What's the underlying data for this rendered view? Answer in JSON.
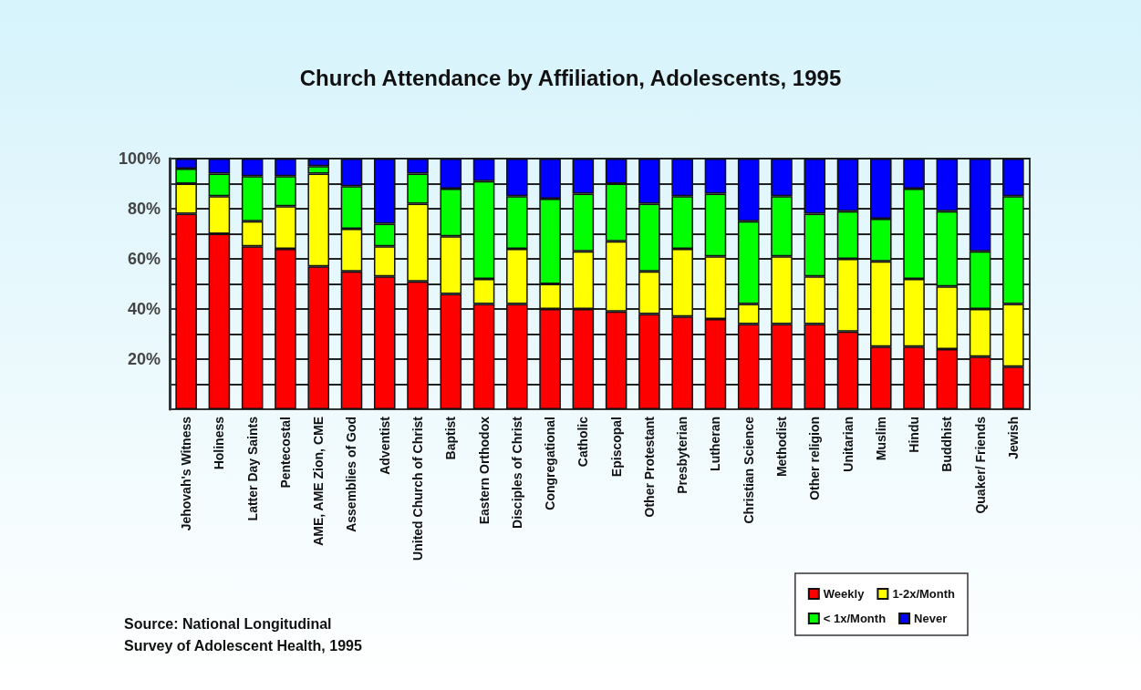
{
  "chart_data": {
    "type": "bar",
    "title": "Church Attendance by Affiliation, Adolescents, 1995",
    "stacked": true,
    "categories": [
      "Jehovah's Witness",
      "Holiness",
      "Latter Day Saints",
      "Pentecostal",
      "AME, AME Zion, CME",
      "Assemblies of God",
      "Adventist",
      "United Church of Christ",
      "Baptist",
      "Eastern Orthodox",
      "Disciples of Christ",
      "Congregational",
      "Catholic",
      "Episcopal",
      "Other Protestant",
      "Presbyterian",
      "Lutheran",
      "Christian Science",
      "Methodist",
      "Other religion",
      "Unitarian",
      "Muslim",
      "Hindu",
      "Buddhist",
      "Quaker/ Friends",
      "Jewish"
    ],
    "series": [
      {
        "name": "Weekly",
        "color": "#ff0000",
        "values": [
          78,
          70,
          65,
          64,
          57,
          55,
          53,
          51,
          46,
          42,
          42,
          40,
          40,
          39,
          38,
          37,
          36,
          34,
          34,
          34,
          31,
          25,
          25,
          24,
          21,
          17
        ]
      },
      {
        "name": "1-2x/Month",
        "color": "#ffff00",
        "values": [
          12,
          15,
          10,
          17,
          37,
          17,
          12,
          31,
          23,
          10,
          22,
          10,
          23,
          28,
          17,
          27,
          25,
          8,
          27,
          19,
          29,
          34,
          27,
          25,
          19,
          25
        ]
      },
      {
        "name": "< 1x/Month",
        "color": "#00ff00",
        "values": [
          6,
          9,
          18,
          12,
          3,
          17,
          9,
          12,
          19,
          39,
          21,
          34,
          23,
          23,
          27,
          21,
          25,
          33,
          24,
          25,
          19,
          17,
          36,
          30,
          23,
          43
        ]
      },
      {
        "name": "Never",
        "color": "#0000ff",
        "values": [
          4,
          6,
          7,
          7,
          3,
          11,
          26,
          6,
          12,
          9,
          15,
          16,
          14,
          10,
          18,
          15,
          14,
          25,
          15,
          22,
          21,
          24,
          12,
          21,
          37,
          15
        ]
      }
    ],
    "ylim": [
      0,
      100
    ],
    "yticks": [
      {
        "value": 0,
        "label": null
      },
      {
        "value": 10,
        "label": null
      },
      {
        "value": 20,
        "label": "20%"
      },
      {
        "value": 30,
        "label": null
      },
      {
        "value": 40,
        "label": "40%"
      },
      {
        "value": 50,
        "label": null
      },
      {
        "value": 60,
        "label": "60%"
      },
      {
        "value": 70,
        "label": null
      },
      {
        "value": 80,
        "label": "80%"
      },
      {
        "value": 90,
        "label": null
      },
      {
        "value": 100,
        "label": "100%"
      }
    ],
    "grid": "y",
    "legend": "bottom right",
    "annotations": [
      "Source: National Longitudinal\nSurvey of Adolescent Health, 1995"
    ]
  }
}
